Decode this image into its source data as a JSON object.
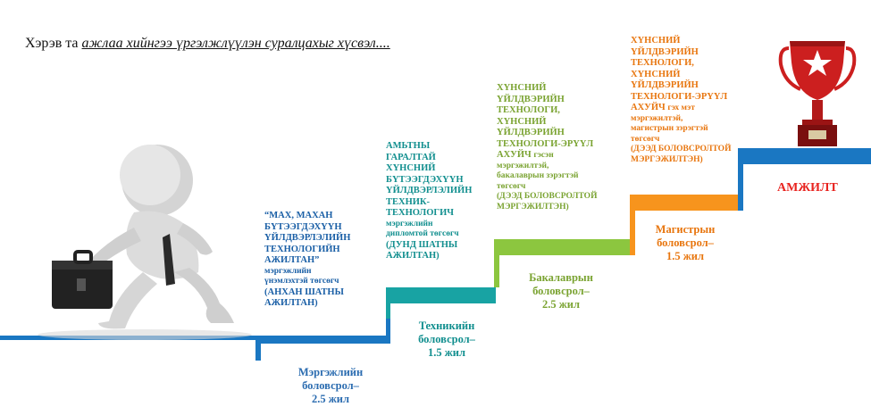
{
  "heading": {
    "prefix": "Хэрэв та ",
    "highlight": "ажлаа хийнгээ үргэлжлүүлэн суралцахыг хүсвэл...."
  },
  "steps": [
    {
      "id": "vocational",
      "color": "#1a77c2",
      "stage_label": [
        "Мэргэжлийн",
        "боловсрол–",
        "2.5 жил"
      ],
      "text_lines": [
        "“МАХ, МАХАН",
        "БҮТЭЭГДЭХҮҮН",
        "ҮЙЛДВЭРЛЭЛИЙН",
        "ТЕХНОЛОГИЙН",
        "АЖИЛТАН”"
      ],
      "sub_lines": [
        "мэргэжлийн",
        "үнэмлэхтэй төгсөгч"
      ],
      "level_lines": [
        "(АНХАН ШАТНЫ",
        "АЖИЛТАН)"
      ]
    },
    {
      "id": "technical",
      "color": "#18a3a3",
      "stage_label": [
        "Техникийн",
        "боловсрол–",
        "1.5 жил"
      ],
      "text_lines": [
        "АМЬТНЫ",
        "ГАРАЛТАЙ",
        "ХҮНСНИЙ",
        "БҮТЭЭГДЭХҮҮН",
        "ҮЙЛДВЭРЛЭЛИЙН",
        "ТЕХНИК-",
        "ТЕХНОЛОГИЧ"
      ],
      "sub_lines": [
        "мэргэжлийн",
        "дипломтой төгсөгч"
      ],
      "level_lines": [
        "(ДУНД ШАТНЫ",
        "АЖИЛТАН)"
      ]
    },
    {
      "id": "bachelor",
      "color": "#8cc63f",
      "stage_label": [
        "Бакалаврын",
        "боловсрол–",
        "2.5 жил"
      ],
      "text_lines": [
        "ХҮНСНИЙ",
        "ҮЙЛДВЭРИЙН",
        "ТЕХНОЛОГИ,",
        "ХҮНСНИЙ",
        "ҮЙЛДВЭРИЙН",
        "ТЕХНОЛОГИ-ЭРҮҮЛ",
        "АХУЙЧ"
      ],
      "inline_sub": "гэсэн",
      "sub_lines": [
        "мэргэжилтэй,",
        "бакалаврын зэрэгтэй",
        "төгсөгч"
      ],
      "level_lines": [
        "(ДЭЭД БОЛОВСРОЛТОЙ",
        "МЭРГЭЖИЛТЭН)"
      ]
    },
    {
      "id": "master",
      "color": "#f7941d",
      "stage_label": [
        "Магистрын",
        "боловсрол–",
        "1.5 жил"
      ],
      "text_lines": [
        "ХҮНСНИЙ",
        "ҮЙЛДВЭРИЙН",
        "ТЕХНОЛОГИ,",
        "ХҮНСНИЙ",
        "ҮЙЛДВЭРИЙН",
        "ТЕХНОЛОГИ-ЭРҮҮЛ",
        "АХУЙЧ"
      ],
      "inline_sub": "гэх мэт",
      "sub_lines": [
        "мэргэжилтэй,",
        "магистрын зэрэгтэй",
        "төгсөгч"
      ],
      "level_lines": [
        "(ДЭЭД БОЛОВСРОЛТОЙ",
        "МЭРГЭЖИЛТЭН)"
      ]
    }
  ],
  "goal": {
    "label": "АМЖИЛТ",
    "color": "#e8231f"
  },
  "colors": {
    "trophy_red": "#cc1f1f",
    "trophy_dark": "#7a0f0f",
    "stair_top": "#1a77c2"
  },
  "icons": [
    "running-man-with-briefcase-icon",
    "trophy-star-icon"
  ]
}
